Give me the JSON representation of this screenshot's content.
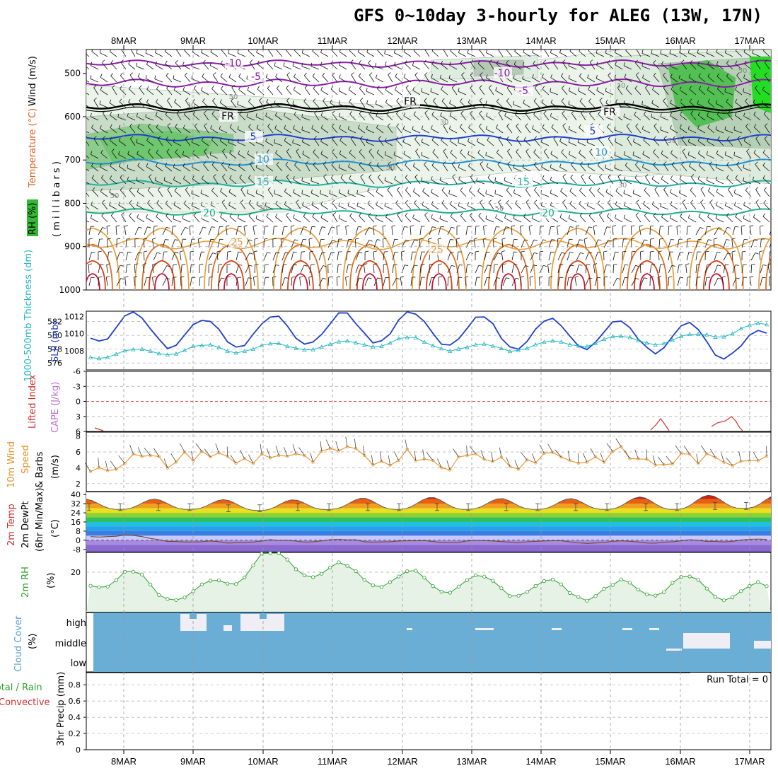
{
  "title": "GFS 0~10day 3-hourly for ALEG (13W, 17N)",
  "dates": [
    "8MAR",
    "9MAR",
    "10MAR",
    "11MAR",
    "12MAR",
    "13MAR",
    "14MAR",
    "15MAR",
    "16MAR",
    "17MAR"
  ],
  "panels": {
    "upper_air": {
      "ylabel_wind": "Wind (m/s)",
      "ylabel_temp": "Temperature (°C)",
      "ylabel_rh": "RH (%)",
      "ylabel_units": "( m i l l i b a r s )",
      "ytick_labels": [
        "500",
        "600",
        "700",
        "800",
        "900",
        "1000"
      ],
      "temp_contour_labels": [
        "-10",
        "-10",
        "-5",
        "-5",
        "FR",
        "FR",
        "FR",
        "5",
        "5",
        "10",
        "10",
        "15",
        "15",
        "20",
        "20",
        "25",
        "25"
      ],
      "rh_contour_labels": [
        "30",
        "30",
        "30",
        "30",
        "50",
        "50",
        "50",
        "50",
        "50",
        "30",
        "50"
      ]
    },
    "slp": {
      "ylabel_slp": "SLP (mb)",
      "ylabel_thick": "1000-500mb Thickness (dm)",
      "ytick_left": [
        "582",
        "580",
        "578",
        "576"
      ],
      "ytick_right": [
        "1012",
        "1010",
        "1008"
      ]
    },
    "cape": {
      "ylabel_li": "Lifted Index",
      "ylabel_cape": "CAPE (J/kg)",
      "ytick_labels": [
        "-6",
        "-3",
        "0",
        "3",
        "6"
      ]
    },
    "wind10": {
      "ylabel_1": "10m Wind",
      "ylabel_2": "Speed",
      "ylabel_3": "& Barbs",
      "ylabel_units": "(m/s)",
      "ytick_labels": [
        "8",
        "6",
        "4",
        "2"
      ]
    },
    "temp2m": {
      "ylabel_1": "2m Temp",
      "ylabel_2": "2m DewPt",
      "ylabel_3": "(6hr Min/Max)",
      "ylabel_units": "(°C)",
      "ytick_labels": [
        "40",
        "32",
        "24",
        "16",
        "8",
        "0",
        "-8"
      ]
    },
    "rh2m": {
      "ylabel": "2m RH",
      "ylabel_units": "(%)",
      "ytick_labels": [
        "20"
      ]
    },
    "cloud": {
      "ylabel": "Cloud Cover",
      "ylabel_units": "(%)",
      "ytick_labels": [
        "high",
        "middle",
        "low"
      ]
    },
    "precip": {
      "ylabel_1": "Total / Rain",
      "ylabel_2": "Convective",
      "ylabel_3": "3hr Precip (mm)",
      "ytick_labels": [
        "0.8",
        "0.6",
        "0.4",
        "0.2",
        "0"
      ],
      "run_total": "Run Total = 0"
    }
  },
  "colors": {
    "slp": "#1f3fcf",
    "thickness": "#22b8c0",
    "wind_speed": "#e8902a",
    "rh2m": "#2e9e2e",
    "cloud": "#6aaed6",
    "freezing": "#000000",
    "lifted_index": "#d23030",
    "cape": "#c070d0",
    "temp_warm": "#e06a10",
    "temp_cold": "#8a1ea8"
  },
  "chart_data": [
    {
      "type": "line",
      "title": "SLP (mb) / 1000-500mb Thickness (dm)",
      "x": [
        "8MAR",
        "9MAR",
        "10MAR",
        "11MAR",
        "12MAR",
        "13MAR",
        "14MAR",
        "15MAR",
        "16MAR",
        "17MAR"
      ],
      "series": [
        {
          "name": "SLP (mb)",
          "values": [
            1010.8,
            1009.9,
            1010.3,
            1010.5,
            1010.9,
            1010.2,
            1010.0,
            1009.9,
            1009.5,
            1008.6
          ]
        },
        {
          "name": "1000-500mb Thickness (dm)",
          "values": [
            577.3,
            578.0,
            578.2,
            578.5,
            579.3,
            578.0,
            578.5,
            579.3,
            579.3,
            581.1
          ]
        }
      ]
    },
    {
      "type": "line",
      "title": "10m Wind Speed",
      "x": [
        "8MAR",
        "9MAR",
        "10MAR",
        "11MAR",
        "12MAR",
        "13MAR",
        "14MAR",
        "15MAR",
        "16MAR",
        "17MAR"
      ],
      "series": [
        {
          "name": "10m Wind Speed (m/s)",
          "values": [
            4.6,
            5.4,
            5.2,
            5.5,
            5.3,
            5.0,
            5.2,
            5.4,
            4.8,
            5.2
          ]
        }
      ],
      "ylim": [
        1,
        8.5
      ]
    },
    {
      "type": "area",
      "title": "2m Temp",
      "x": [
        "8MAR",
        "9MAR",
        "10MAR",
        "11MAR",
        "12MAR",
        "13MAR",
        "14MAR",
        "15MAR",
        "16MAR",
        "17MAR"
      ],
      "series": [
        {
          "name": "2m Temp max (°C)",
          "values": [
            36,
            36,
            35,
            36,
            38,
            37,
            36,
            37,
            39,
            40
          ]
        },
        {
          "name": "2m Temp min (°C)",
          "values": [
            27,
            27,
            26,
            27,
            27,
            27,
            27,
            27,
            27,
            28
          ]
        },
        {
          "name": "2m DewPt (°C)",
          "values": [
            4,
            -2,
            -1,
            0,
            -1,
            -1,
            -1,
            -2,
            -1,
            0
          ]
        }
      ],
      "ylim": [
        -10,
        42
      ]
    },
    {
      "type": "line",
      "title": "2m RH",
      "x": [
        "8MAR",
        "9MAR",
        "10MAR",
        "11MAR",
        "12MAR",
        "13MAR",
        "14MAR",
        "15MAR",
        "16MAR",
        "17MAR"
      ],
      "series": [
        {
          "name": "2m RH (%)",
          "values": [
            17,
            7,
            27,
            20,
            16,
            14,
            12,
            10,
            14,
            10
          ]
        }
      ],
      "ylim": [
        0,
        30
      ]
    },
    {
      "type": "bar",
      "title": "3hr Precip (mm)",
      "x": [
        "8MAR",
        "9MAR",
        "10MAR",
        "11MAR",
        "12MAR",
        "13MAR",
        "14MAR",
        "15MAR",
        "16MAR",
        "17MAR"
      ],
      "series": [
        {
          "name": "Total / Rain",
          "values": [
            0,
            0,
            0,
            0,
            0,
            0,
            0,
            0,
            0,
            0
          ]
        },
        {
          "name": "Convective",
          "values": [
            0,
            0,
            0,
            0,
            0,
            0,
            0,
            0,
            0,
            0
          ]
        }
      ],
      "ylim": [
        0,
        0.95
      ]
    }
  ]
}
